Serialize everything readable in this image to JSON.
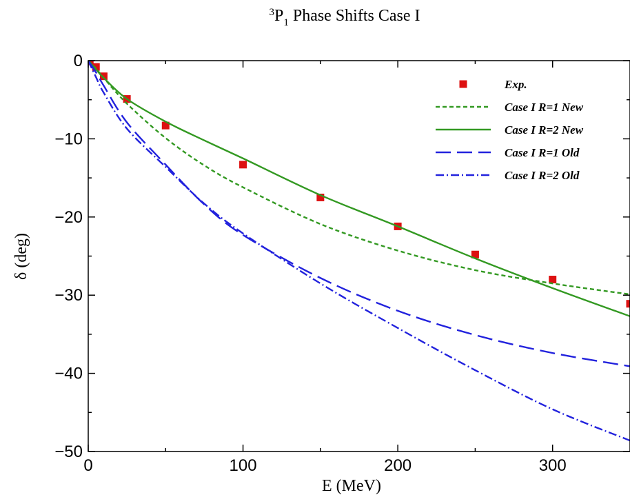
{
  "chart_data": {
    "type": "line",
    "title": {
      "prefix": "3",
      "main": "P",
      "sub": "1",
      "rest": " Phase Shifts Case I"
    },
    "xlabel": "E (MeV)",
    "ylabel": "δ (deg)",
    "xlim": [
      0,
      350
    ],
    "ylim": [
      -50,
      0
    ],
    "xticks": [
      0,
      100,
      200,
      300
    ],
    "yticks": [
      0,
      -10,
      -20,
      -30,
      -40,
      -50
    ],
    "xtick_labels": [
      "0",
      "100",
      "200",
      "300"
    ],
    "ytick_labels": [
      "0",
      "−10",
      "−20",
      "−30",
      "−40",
      "−50"
    ],
    "grid": false,
    "legend_position": "top-right",
    "series": [
      {
        "name": "Exp.",
        "kind": "scatter",
        "color": "#dd1111",
        "x": [
          1,
          5,
          10,
          25,
          50,
          100,
          150,
          200,
          250,
          300,
          350
        ],
        "y": [
          -0.1,
          -0.8,
          -2.0,
          -4.9,
          -8.3,
          -13.3,
          -17.5,
          -21.2,
          -24.8,
          -28.0,
          -31.1
        ]
      },
      {
        "name": "Case I R=1 New",
        "kind": "line",
        "dash": "short",
        "color": "#339922",
        "x": [
          0,
          5,
          10,
          25,
          50,
          75,
          100,
          150,
          200,
          250,
          300,
          350
        ],
        "y": [
          0,
          -1.0,
          -2.2,
          -5.5,
          -9.9,
          -13.4,
          -16.2,
          -20.9,
          -24.3,
          -26.8,
          -28.5,
          -29.9
        ]
      },
      {
        "name": "Case I R=2 New",
        "kind": "line",
        "dash": "solid",
        "color": "#339922",
        "x": [
          0,
          5,
          10,
          25,
          50,
          75,
          100,
          150,
          200,
          250,
          300,
          350
        ],
        "y": [
          0,
          -1.1,
          -2.2,
          -4.9,
          -7.8,
          -10.2,
          -12.5,
          -17.2,
          -21.2,
          -25.3,
          -29.1,
          -32.7
        ]
      },
      {
        "name": "Case I R=1 Old",
        "kind": "line",
        "dash": "long",
        "color": "#2222dd",
        "x": [
          0,
          5,
          10,
          25,
          50,
          75,
          100,
          150,
          200,
          250,
          300,
          350
        ],
        "y": [
          0,
          -1.5,
          -3.2,
          -7.9,
          -13.3,
          -18.4,
          -22.3,
          -27.8,
          -32.0,
          -35.1,
          -37.4,
          -39.1
        ]
      },
      {
        "name": "Case I R=2 Old",
        "kind": "line",
        "dash": "dashdot",
        "color": "#2222dd",
        "x": [
          0,
          5,
          10,
          25,
          50,
          75,
          100,
          150,
          200,
          250,
          300,
          350
        ],
        "y": [
          0,
          -2.1,
          -4.1,
          -8.7,
          -13.6,
          -18.3,
          -22.1,
          -28.5,
          -34.2,
          -39.6,
          -44.6,
          -48.6
        ]
      }
    ]
  }
}
